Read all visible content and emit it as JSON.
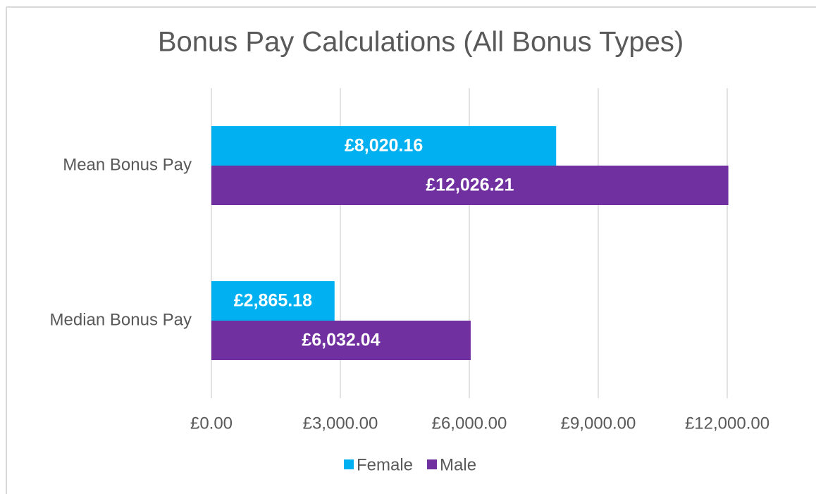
{
  "chart_data": {
    "type": "bar",
    "orientation": "horizontal",
    "title": "Bonus Pay Calculations (All Bonus Types)",
    "categories": [
      "Mean Bonus Pay",
      "Median Bonus Pay"
    ],
    "series": [
      {
        "name": "Female",
        "color": "#00b0f0",
        "values": [
          8020.16,
          2865.18
        ],
        "value_labels": [
          "£8,020.16",
          "£2,865.18"
        ]
      },
      {
        "name": "Male",
        "color": "#7030a0",
        "values": [
          12026.21,
          6032.04
        ],
        "value_labels": [
          "£12,026.21",
          "£6,032.04"
        ]
      }
    ],
    "xlim": [
      0,
      12000
    ],
    "xticks": [
      {
        "value": 0,
        "label": "£0.00"
      },
      {
        "value": 3000,
        "label": "£3,000.00"
      },
      {
        "value": 6000,
        "label": "£6,000.00"
      },
      {
        "value": 9000,
        "label": "£9,000.00"
      },
      {
        "value": 12000,
        "label": "£12,000.00"
      }
    ],
    "grid": true,
    "legend": "bottom"
  }
}
